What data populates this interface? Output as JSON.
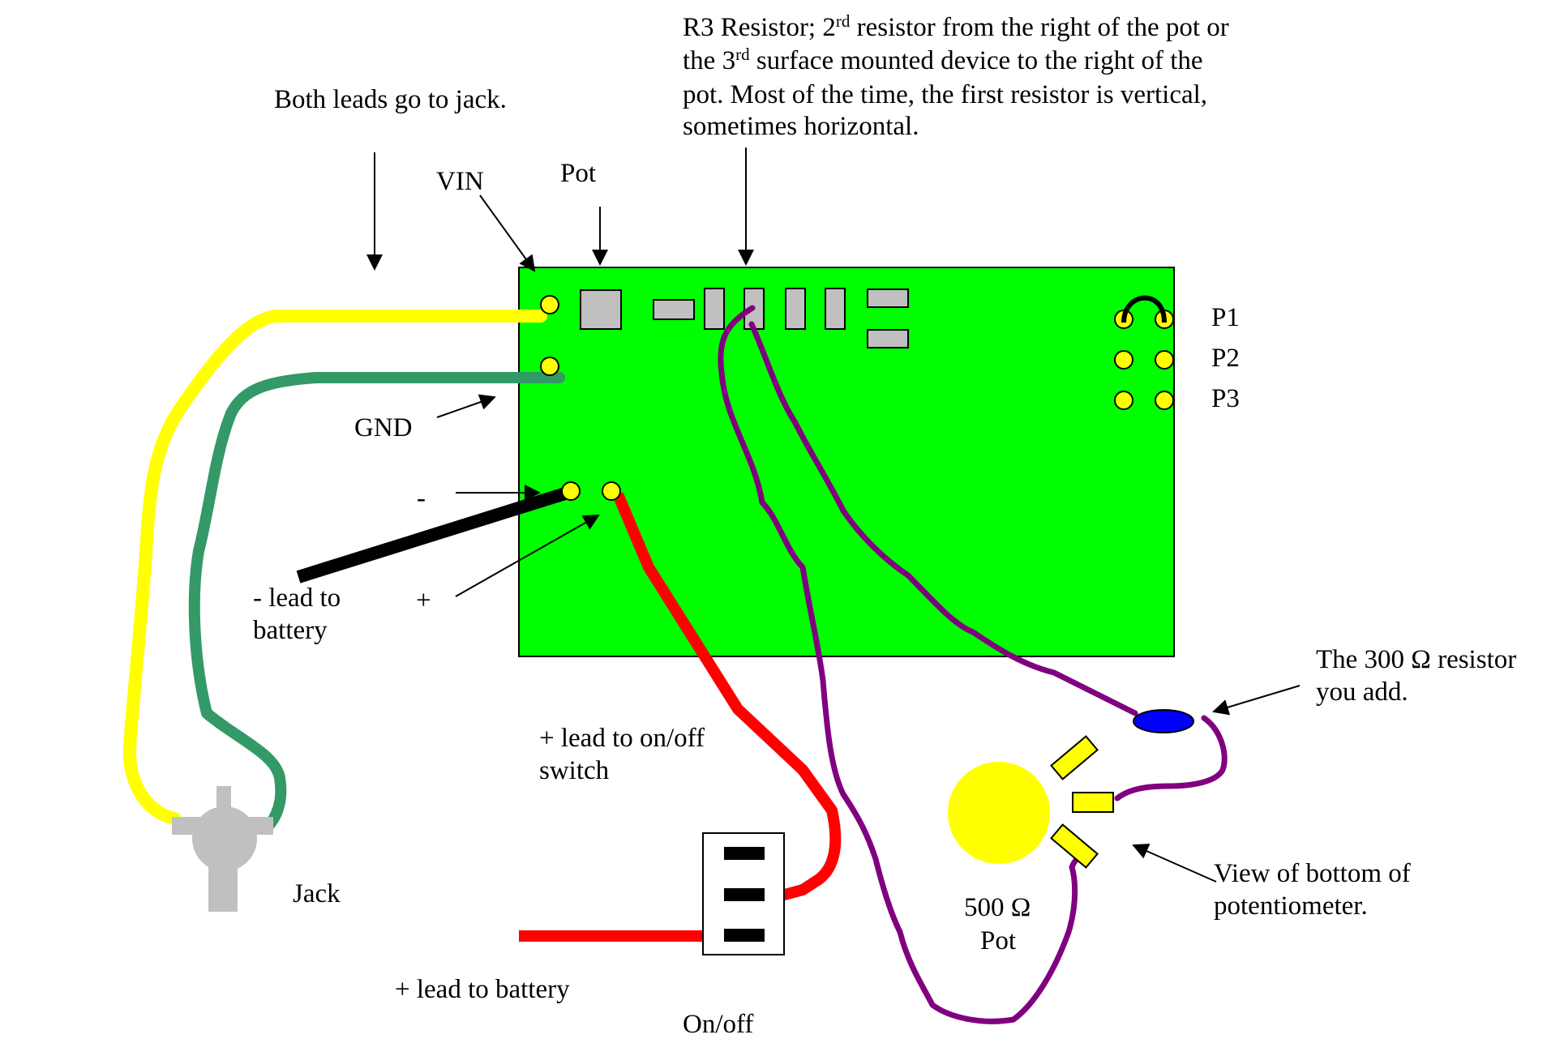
{
  "labels": {
    "both_leads": "Both leads go to jack.",
    "r3_line1_a": "R3 Resistor; 2",
    "r3_line1_sup": "rd",
    "r3_line1_b": " resistor from the right of the pot or",
    "r3_line2_a": "the 3",
    "r3_line2_sup": "rd",
    "r3_line2_b": " surface mounted device to the right of the",
    "r3_line3": "pot.  Most of the time, the first resistor is vertical,",
    "r3_line4": "sometimes horizontal.",
    "vin": "VIN",
    "pot_top": "Pot",
    "gnd": "GND",
    "minus": "-",
    "plus": "+",
    "neg_lead_1": "- lead to",
    "neg_lead_2": "battery",
    "p1": "P1",
    "p2": "P2",
    "p3": "P3",
    "resistor_add_1": "The 300 Ω resistor",
    "resistor_add_2": "you add.",
    "switch_lead_1": "+ lead to on/off",
    "switch_lead_2": "switch",
    "jack": "Jack",
    "pot_value": "500 Ω",
    "pot_bottom": "Pot",
    "view_bottom_1": "View of bottom of",
    "view_bottom_2": "potentiometer.",
    "battery_lead": "+ lead to battery",
    "onoff": "On/off"
  },
  "colors": {
    "board": "#00ff00",
    "pad": "#ffff00",
    "component": "#c0c0c0",
    "yellow_wire": "#ffff00",
    "green_wire": "#339966",
    "red_wire": "#ff0000",
    "purple_wire": "#800080",
    "black_wire": "#000000",
    "resistor": "#0000ff",
    "pot_body": "#ffff00",
    "jack": "#c0c0c0"
  }
}
